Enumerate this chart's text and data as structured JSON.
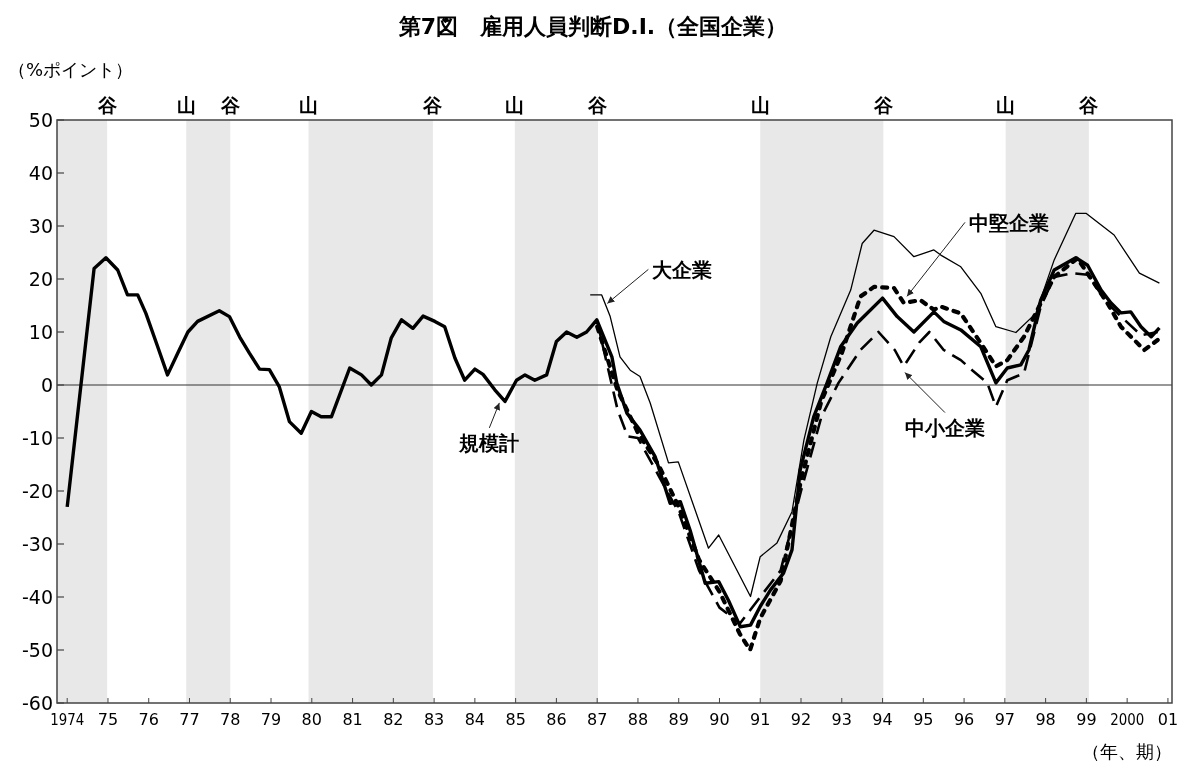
{
  "chart_data": {
    "type": "line",
    "title": "第7図　雇用人員判断D.I.（全国企業）",
    "ylabel": "（%ポイント）",
    "xlabel": "（年、期）",
    "xlim": [
      1973.75,
      2001.1
    ],
    "ylim": [
      -60,
      50
    ],
    "yticks": [
      -60,
      -50,
      -40,
      -30,
      -20,
      -10,
      0,
      10,
      20,
      30,
      40,
      50
    ],
    "xticks": [
      {
        "value": 1974,
        "label": "1974"
      },
      {
        "value": 1975,
        "label": "75"
      },
      {
        "value": 1976,
        "label": "76"
      },
      {
        "value": 1977,
        "label": "77"
      },
      {
        "value": 1978,
        "label": "78"
      },
      {
        "value": 1979,
        "label": "79"
      },
      {
        "value": 1980,
        "label": "80"
      },
      {
        "value": 1981,
        "label": "81"
      },
      {
        "value": 1982,
        "label": "82"
      },
      {
        "value": 1983,
        "label": "83"
      },
      {
        "value": 1984,
        "label": "84"
      },
      {
        "value": 1985,
        "label": "85"
      },
      {
        "value": 1986,
        "label": "86"
      },
      {
        "value": 1987,
        "label": "87"
      },
      {
        "value": 1988,
        "label": "88"
      },
      {
        "value": 1989,
        "label": "89"
      },
      {
        "value": 1990,
        "label": "90"
      },
      {
        "value": 1991,
        "label": "91"
      },
      {
        "value": 1992,
        "label": "92"
      },
      {
        "value": 1993,
        "label": "93"
      },
      {
        "value": 1994,
        "label": "94"
      },
      {
        "value": 1995,
        "label": "95"
      },
      {
        "value": 1996,
        "label": "96"
      },
      {
        "value": 1997,
        "label": "97"
      },
      {
        "value": 1998,
        "label": "98"
      },
      {
        "value": 1999,
        "label": "99"
      },
      {
        "value": 2000,
        "label": "2000"
      },
      {
        "value": 2001,
        "label": "01"
      }
    ],
    "grid": false,
    "legend": false,
    "marker": "none",
    "series": [
      {
        "name": "規模計",
        "color": "#000000",
        "line_style": "solid",
        "x": [
          1974.0,
          1974.66,
          1974.95,
          1975.24,
          1975.48,
          1975.73,
          1975.93,
          1976.22,
          1976.46,
          1976.71,
          1976.96,
          1977.2,
          1977.73,
          1977.98,
          1978.23,
          1978.47,
          1978.72,
          1978.96,
          1979.2,
          1979.45,
          1979.74,
          1979.99,
          1980.23,
          1980.48,
          1980.93,
          1981.22,
          1981.46,
          1981.71,
          1981.95,
          1982.2,
          1982.48,
          1982.73,
          1983.02,
          1983.26,
          1983.51,
          1983.75,
          1984.0,
          1984.2,
          1984.49,
          1984.74,
          1985.02,
          1985.23,
          1985.47,
          1985.76,
          1986.0,
          1986.25,
          1986.5,
          1986.74,
          1986.99,
          1987.36,
          1987.48,
          1987.73,
          1988.05,
          1988.42,
          1988.79,
          1989.04,
          1989.28,
          1989.65,
          1989.98,
          1990.22,
          1990.51,
          1990.76,
          1991.0,
          1991.25,
          1991.57,
          1991.78,
          1991.98,
          1992.31,
          1992.64,
          1992.97,
          1993.38,
          1994.0,
          1994.36,
          1994.77,
          1995.26,
          1995.5,
          1995.92,
          1996.41,
          1996.78,
          1997.06,
          1997.39,
          1997.59,
          1997.88,
          1998.21,
          1998.74,
          1999.03,
          1999.36,
          1999.6,
          1999.85,
          2000.09,
          2000.34,
          2000.59,
          2000.79
        ],
        "values": [
          -23,
          22,
          24,
          21.7,
          17,
          17,
          13.5,
          7.2,
          1.9,
          6,
          10,
          12,
          14,
          12.9,
          9.1,
          6,
          3,
          2.9,
          -0.3,
          -6.9,
          -9.1,
          -5,
          -6,
          -6,
          3.2,
          1.9,
          0,
          1.9,
          8.9,
          12.3,
          10.7,
          13,
          12,
          11,
          5.1,
          0.9,
          3,
          2,
          -0.9,
          -3.1,
          0.9,
          1.9,
          0.9,
          1.9,
          8.2,
          10,
          9,
          10,
          12.3,
          5.3,
          0.4,
          -5.3,
          -8.5,
          -13.5,
          -22.3,
          -22,
          -27.4,
          -37.4,
          -37.1,
          -40.6,
          -45.6,
          -45.3,
          -41.8,
          -38.7,
          -35.5,
          -31.1,
          -16,
          -6,
          0.4,
          7.2,
          11.7,
          16.4,
          12.9,
          10,
          13.8,
          12,
          10.4,
          7.2,
          0.4,
          3.2,
          3.8,
          6.6,
          16,
          21.7,
          24,
          22.6,
          17.9,
          15.5,
          13.6,
          13.8,
          11,
          9.1,
          10.8
        ]
      },
      {
        "name": "大企業",
        "color": "#000000",
        "line_style": "solid",
        "x": [
          1986.83,
          1987.11,
          1987.32,
          1987.56,
          1987.81,
          1988.05,
          1988.3,
          1988.75,
          1988.99,
          1989.73,
          1989.98,
          1990.76,
          1991.0,
          1991.41,
          1991.78,
          1992.07,
          1992.4,
          1992.73,
          1993.22,
          1993.5,
          1993.79,
          1994.28,
          1994.77,
          1995.26,
          1995.43,
          1995.92,
          1996.41,
          1996.78,
          1997.27,
          1997.76,
          1998.21,
          1998.74,
          1998.99,
          1999.68,
          2000.3,
          2000.79
        ],
        "values": [
          17,
          17,
          12.9,
          5.3,
          2.8,
          1.6,
          -3.4,
          -14.7,
          -14.5,
          -30.8,
          -28.3,
          -39.9,
          -32.4,
          -29.8,
          -23.9,
          -10.4,
          0.4,
          9.1,
          17.9,
          26.7,
          29.2,
          28,
          24.2,
          25.5,
          24.5,
          22.3,
          17.3,
          11,
          9.9,
          13.5,
          23.6,
          32.4,
          32.4,
          28.3,
          21.1,
          19.2
        ]
      },
      {
        "name": "中堅企業",
        "color": "#000000",
        "line_style": "dotted",
        "x": [
          1987.0,
          1987.5,
          1988.0,
          1988.5,
          1989.0,
          1989.5,
          1990.0,
          1990.5,
          1990.75,
          1991.0,
          1991.5,
          1992.0,
          1992.5,
          1993.0,
          1993.46,
          1993.79,
          1994.28,
          1994.52,
          1994.93,
          1995.26,
          1995.43,
          1995.92,
          1996.41,
          1996.78,
          1997.06,
          1997.47,
          1997.88,
          1998.21,
          1998.78,
          1999.19,
          1999.52,
          1999.85,
          2000.42,
          2000.75
        ],
        "values": [
          11,
          -1,
          -9,
          -15,
          -23,
          -33,
          -39,
          -47,
          -50,
          -44,
          -37,
          -18,
          -3,
          6,
          16.7,
          18.5,
          18.3,
          15.5,
          16,
          14.2,
          14.8,
          13.5,
          7.9,
          3.5,
          4.7,
          9.1,
          15.4,
          20.4,
          23.9,
          19.2,
          15.4,
          11,
          6.6,
          8.5
        ]
      },
      {
        "name": "中小企業",
        "color": "#000000",
        "line_style": "dashed",
        "x": [
          1987.0,
          1987.5,
          1987.75,
          1988.0,
          1988.5,
          1989.0,
          1989.5,
          1990.0,
          1990.5,
          1991.0,
          1991.5,
          1992.0,
          1992.5,
          1992.92,
          1993.46,
          1993.9,
          1994.3,
          1994.52,
          1994.9,
          1995.15,
          1995.5,
          1995.92,
          1996.2,
          1996.57,
          1996.78,
          1997.06,
          1997.47,
          1997.88,
          1998.21,
          1998.67,
          1999.03,
          1999.52,
          1999.85,
          2000.34,
          2000.75
        ],
        "values": [
          12,
          -4.7,
          -9.7,
          -10,
          -17,
          -24,
          -35,
          -42,
          -45,
          -40,
          -35,
          -20,
          -6,
          0.4,
          6.6,
          10,
          6.6,
          3.5,
          8,
          10,
          6.6,
          4.7,
          2.8,
          0.4,
          -4.1,
          0.9,
          2.2,
          14.8,
          20.4,
          21.1,
          20.8,
          15.4,
          12.9,
          9.4,
          10
        ]
      }
    ],
    "bands": [
      {
        "axis": "x",
        "from": 1973.75,
        "to": 1974.98,
        "color": "#e8e8e8"
      },
      {
        "axis": "x",
        "from": 1976.92,
        "to": 1978.0,
        "color": "#e8e8e8"
      },
      {
        "axis": "x",
        "from": 1979.92,
        "to": 1982.97,
        "color": "#e8e8e8"
      },
      {
        "axis": "x",
        "from": 1984.98,
        "to": 1987.02,
        "color": "#e8e8e8"
      },
      {
        "axis": "x",
        "from": 1991.0,
        "to": 1994.02,
        "color": "#e8e8e8"
      },
      {
        "axis": "x",
        "from": 1997.02,
        "to": 1999.06,
        "color": "#e8e8e8"
      }
    ],
    "ref_lines": [
      {
        "axis": "y",
        "value": 0,
        "color": "#333333",
        "line_style": "solid"
      }
    ],
    "annotations": [
      "谷",
      "山",
      "谷",
      "山",
      "谷",
      "山",
      "谷",
      "山",
      "谷",
      "山",
      "谷"
    ]
  }
}
